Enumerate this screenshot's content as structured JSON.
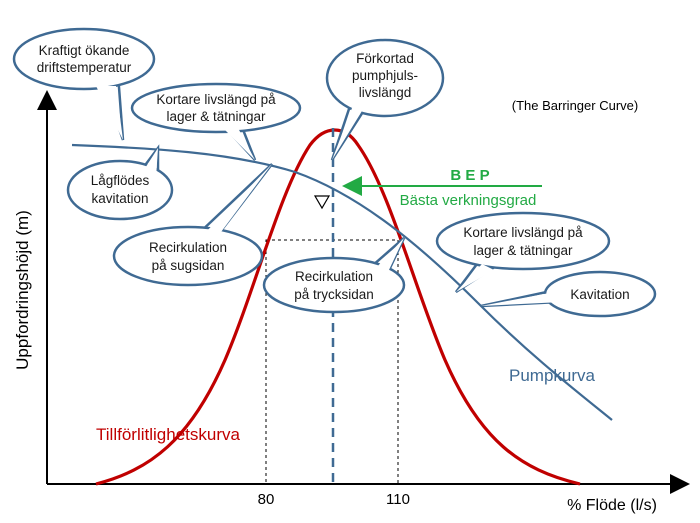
{
  "title_note": "(The Barringer Curve)",
  "y_axis_label": "Uppfordringshöjd (m)",
  "x_axis_label": "% Flöde (l/s)",
  "x_ticks": [
    "80",
    "110"
  ],
  "pump_curve_label": "Pumpkurva",
  "reliability_curve_label": "Tillförlitlighetskurva",
  "bep": {
    "label": "B E P",
    "subtitle": "Bästa verkningsgrad"
  },
  "callouts": [
    {
      "id": "driftstemp",
      "lines": [
        "Kraftigt ökande",
        "driftstemperatur"
      ]
    },
    {
      "id": "livslangd-left",
      "lines": [
        "Kortare livslängd på",
        "lager & tätningar"
      ]
    },
    {
      "id": "pumphjul",
      "lines": [
        "Förkortad",
        "pumphjuls-",
        "livslängd"
      ]
    },
    {
      "id": "lagflodes",
      "lines": [
        "Lågflödes",
        "kavitation"
      ]
    },
    {
      "id": "recirk-sug",
      "lines": [
        "Recirkulation",
        "på sugsidan"
      ]
    },
    {
      "id": "recirk-tryck",
      "lines": [
        "Recirkulation",
        "på trycksidan"
      ]
    },
    {
      "id": "livslangd-right",
      "lines": [
        "Kortare livslängd på",
        "lager & tätningar"
      ]
    },
    {
      "id": "kavitation",
      "lines": [
        "Kavitation"
      ]
    }
  ],
  "colors": {
    "pump_curve": "#3f6a93",
    "reliability_curve": "#c00000",
    "bep": "#22aa44",
    "bubble_stroke": "#3f6a93"
  }
}
